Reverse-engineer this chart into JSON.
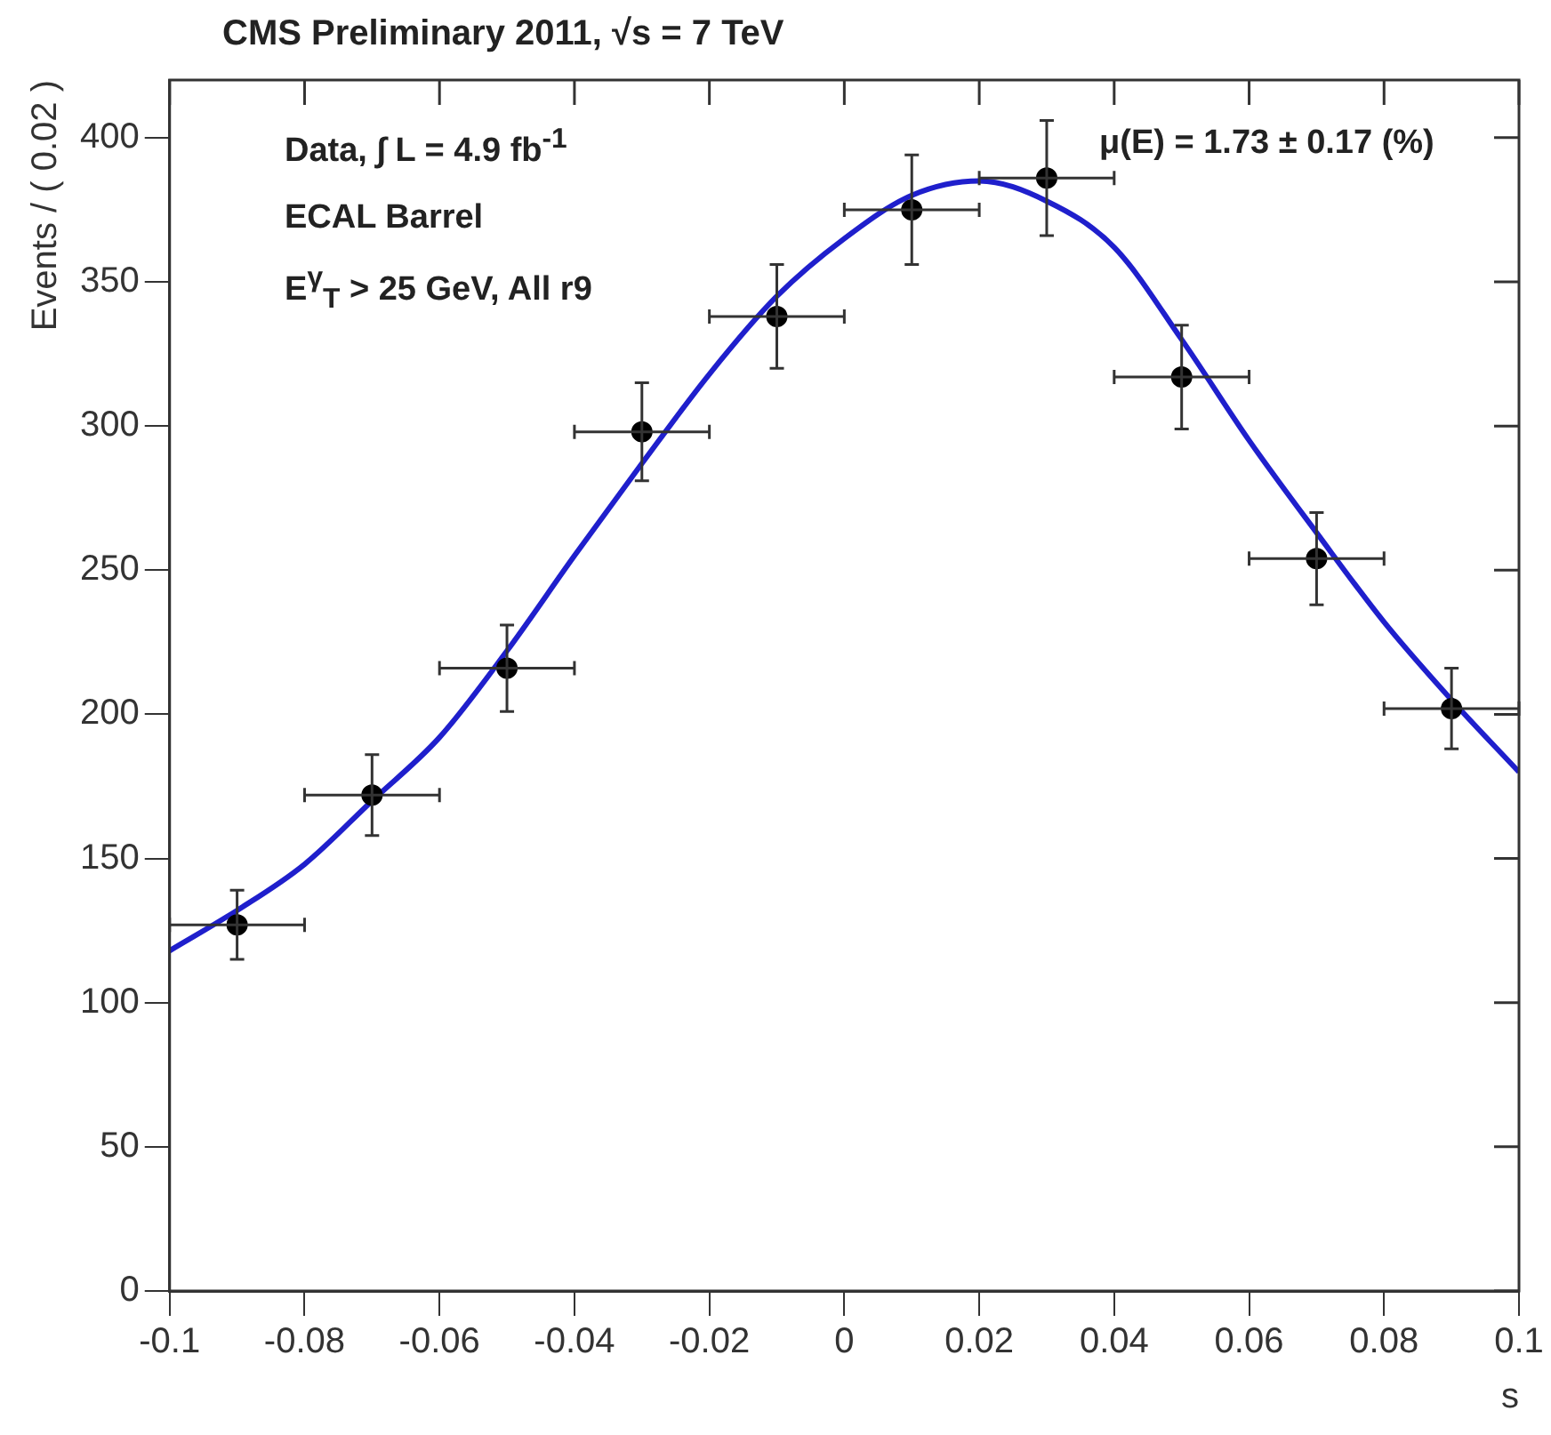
{
  "chart_data": {
    "type": "scatter",
    "title": "CMS Preliminary 2011, √s = 7 TeV",
    "xlabel": "s",
    "ylabel": "Events / ( 0.02 )",
    "annotations": [
      "Data, ∫ L = 4.9 fb$^{-1}$",
      "ECAL Barrel",
      "E$^{γ}$$_{T}$ > 25 GeV, All r9",
      "μ(E) = 1.73 ± 0.17 (%)"
    ],
    "xlim": [
      -0.1,
      0.1
    ],
    "xticks": [
      -0.1,
      -0.08,
      -0.06,
      -0.04,
      -0.02,
      0,
      0.02,
      0.04,
      0.06,
      0.08,
      0.1
    ],
    "ylim": [
      0,
      420
    ],
    "yticks": [
      0,
      50,
      100,
      150,
      200,
      250,
      300,
      350,
      400
    ],
    "grid": false,
    "legend": false,
    "series": [
      {
        "marker": "circle",
        "color": "#000000",
        "x": [
          -0.09,
          -0.07,
          -0.05,
          -0.03,
          -0.01,
          0.01,
          0.03,
          0.05,
          0.07,
          0.09
        ],
        "values": [
          127,
          172,
          216,
          298,
          338,
          375,
          386,
          317,
          254,
          202
        ],
        "errors": [
          12,
          14,
          15,
          17,
          18,
          19,
          20,
          18,
          16,
          14
        ],
        "xerrors": [
          0.01,
          0.01,
          0.01,
          0.01,
          0.01,
          0.01,
          0.01,
          0.01,
          0.01,
          0.01
        ]
      },
      {
        "type": "line",
        "marker": "none",
        "color": "#1f1fcc",
        "x": [
          -0.1,
          -0.09,
          -0.08,
          -0.07,
          -0.06,
          -0.05,
          -0.04,
          -0.03,
          -0.02,
          -0.01,
          0,
          0.01,
          0.02,
          0.03,
          0.04,
          0.05,
          0.06,
          0.07,
          0.08,
          0.09,
          0.1
        ],
        "values": [
          118,
          132,
          148,
          170,
          192,
          222,
          255,
          287,
          318,
          345,
          365,
          380,
          385,
          378,
          362,
          330,
          295,
          263,
          232,
          205,
          180
        ]
      }
    ]
  }
}
